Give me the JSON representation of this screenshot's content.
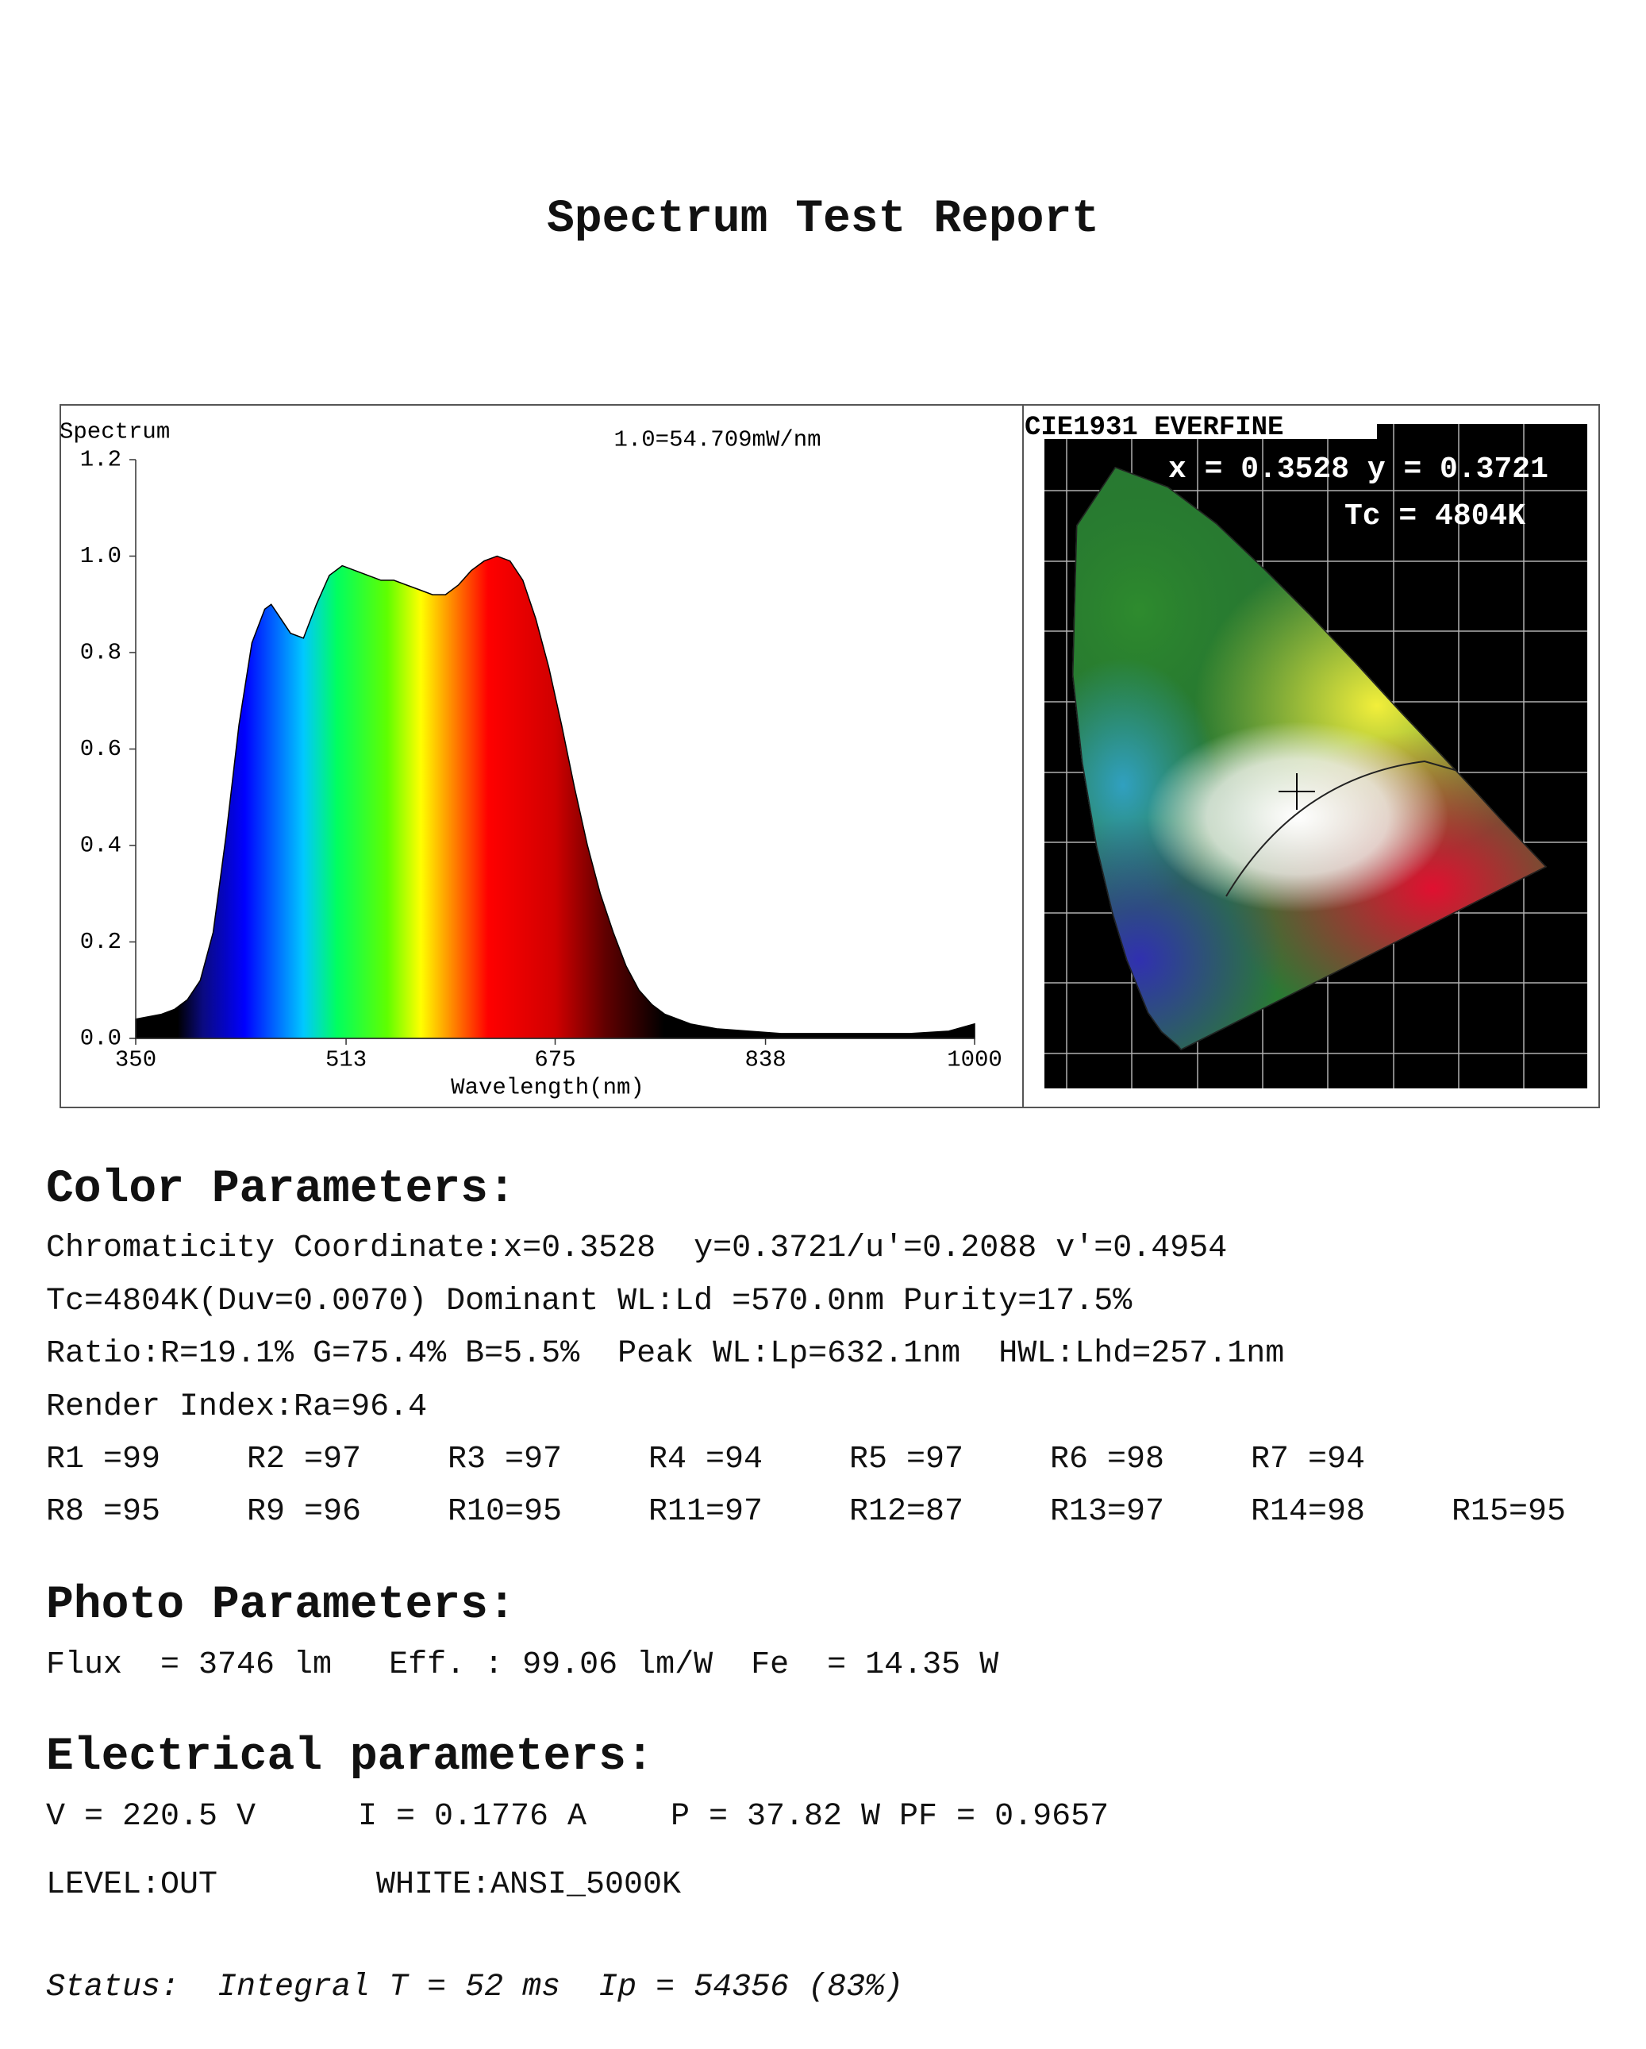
{
  "header": {
    "title": "Spectrum Test Report"
  },
  "chart_data": {
    "type": "area",
    "y_label": "Spectrum",
    "annotation": "1.0=54.709mW/nm",
    "x_label": "Wavelength(nm)",
    "x": [
      350,
      370,
      380,
      390,
      400,
      410,
      420,
      430,
      440,
      450,
      455,
      460,
      470,
      480,
      490,
      500,
      510,
      520,
      530,
      540,
      550,
      560,
      570,
      580,
      590,
      600,
      610,
      620,
      630,
      640,
      650,
      660,
      670,
      680,
      690,
      700,
      710,
      720,
      730,
      740,
      750,
      760,
      780,
      800,
      850,
      900,
      950,
      980,
      1000
    ],
    "values": [
      0.04,
      0.05,
      0.06,
      0.08,
      0.12,
      0.22,
      0.42,
      0.65,
      0.82,
      0.89,
      0.9,
      0.88,
      0.84,
      0.83,
      0.9,
      0.96,
      0.98,
      0.97,
      0.96,
      0.95,
      0.95,
      0.94,
      0.93,
      0.92,
      0.92,
      0.94,
      0.97,
      0.99,
      1.0,
      0.99,
      0.95,
      0.87,
      0.77,
      0.65,
      0.52,
      0.4,
      0.3,
      0.22,
      0.15,
      0.1,
      0.07,
      0.05,
      0.03,
      0.02,
      0.01,
      0.01,
      0.01,
      0.015,
      0.03
    ],
    "xlim": [
      350,
      1000
    ],
    "xticks": [
      350,
      513,
      675,
      838,
      1000
    ],
    "ylim": [
      0,
      1.2
    ],
    "yticks": [
      {
        "value": 0,
        "label": "0.0"
      },
      {
        "value": 0.2,
        "label": "0.2"
      },
      {
        "value": 0.4,
        "label": "0.4"
      },
      {
        "value": 0.6,
        "label": "0.6"
      },
      {
        "value": 0.8,
        "label": "0.8"
      },
      {
        "value": 1,
        "label": "1.0"
      },
      {
        "value": 1.2,
        "label": "1.2"
      }
    ]
  },
  "cie": {
    "title": "CIE1931 EVERFINE",
    "coords": "x = 0.3528 y = 0.3721",
    "tc": "Tc = 4804K"
  },
  "color_parameters": {
    "heading": "Color Parameters:",
    "lines": [
      "Chromaticity Coordinate:x=0.3528  y=0.3721/u'=0.2088 v'=0.4954",
      "Tc=4804K(Duv=0.0070) Dominant WL:Ld =570.0nm Purity=17.5%",
      "Ratio:R=19.1% G=75.4% B=5.5%  Peak WL:Lp=632.1nm  HWL:Lhd=257.1nm",
      "Render Index:Ra=96.4"
    ],
    "ri_rows": [
      [
        "R1 =99",
        "R2 =97",
        "R3 =97",
        "R4 =94",
        "R5 =97",
        "R6 =98",
        "R7 =94"
      ],
      [
        "R8 =95",
        "R9 =96",
        "R10=95",
        "R11=97",
        "R12=87",
        "R13=97",
        "R14=98",
        "R15=95"
      ]
    ]
  },
  "photo_parameters": {
    "heading": "Photo Parameters:",
    "line": "Flux  = 3746 lm   Eff. : 99.06 lm/W  Fe  = 14.35 W"
  },
  "electrical_parameters": {
    "heading": "Electrical parameters:",
    "items": [
      "V = 220.5 V",
      "I = 0.1776 A",
      "P = 37.82 W PF = 0.9657"
    ],
    "level": "LEVEL:OUT",
    "white": "WHITE:ANSI_5000K"
  },
  "status": "Status:  Integral T = 52 ms  Ip = 54356 (83%)"
}
